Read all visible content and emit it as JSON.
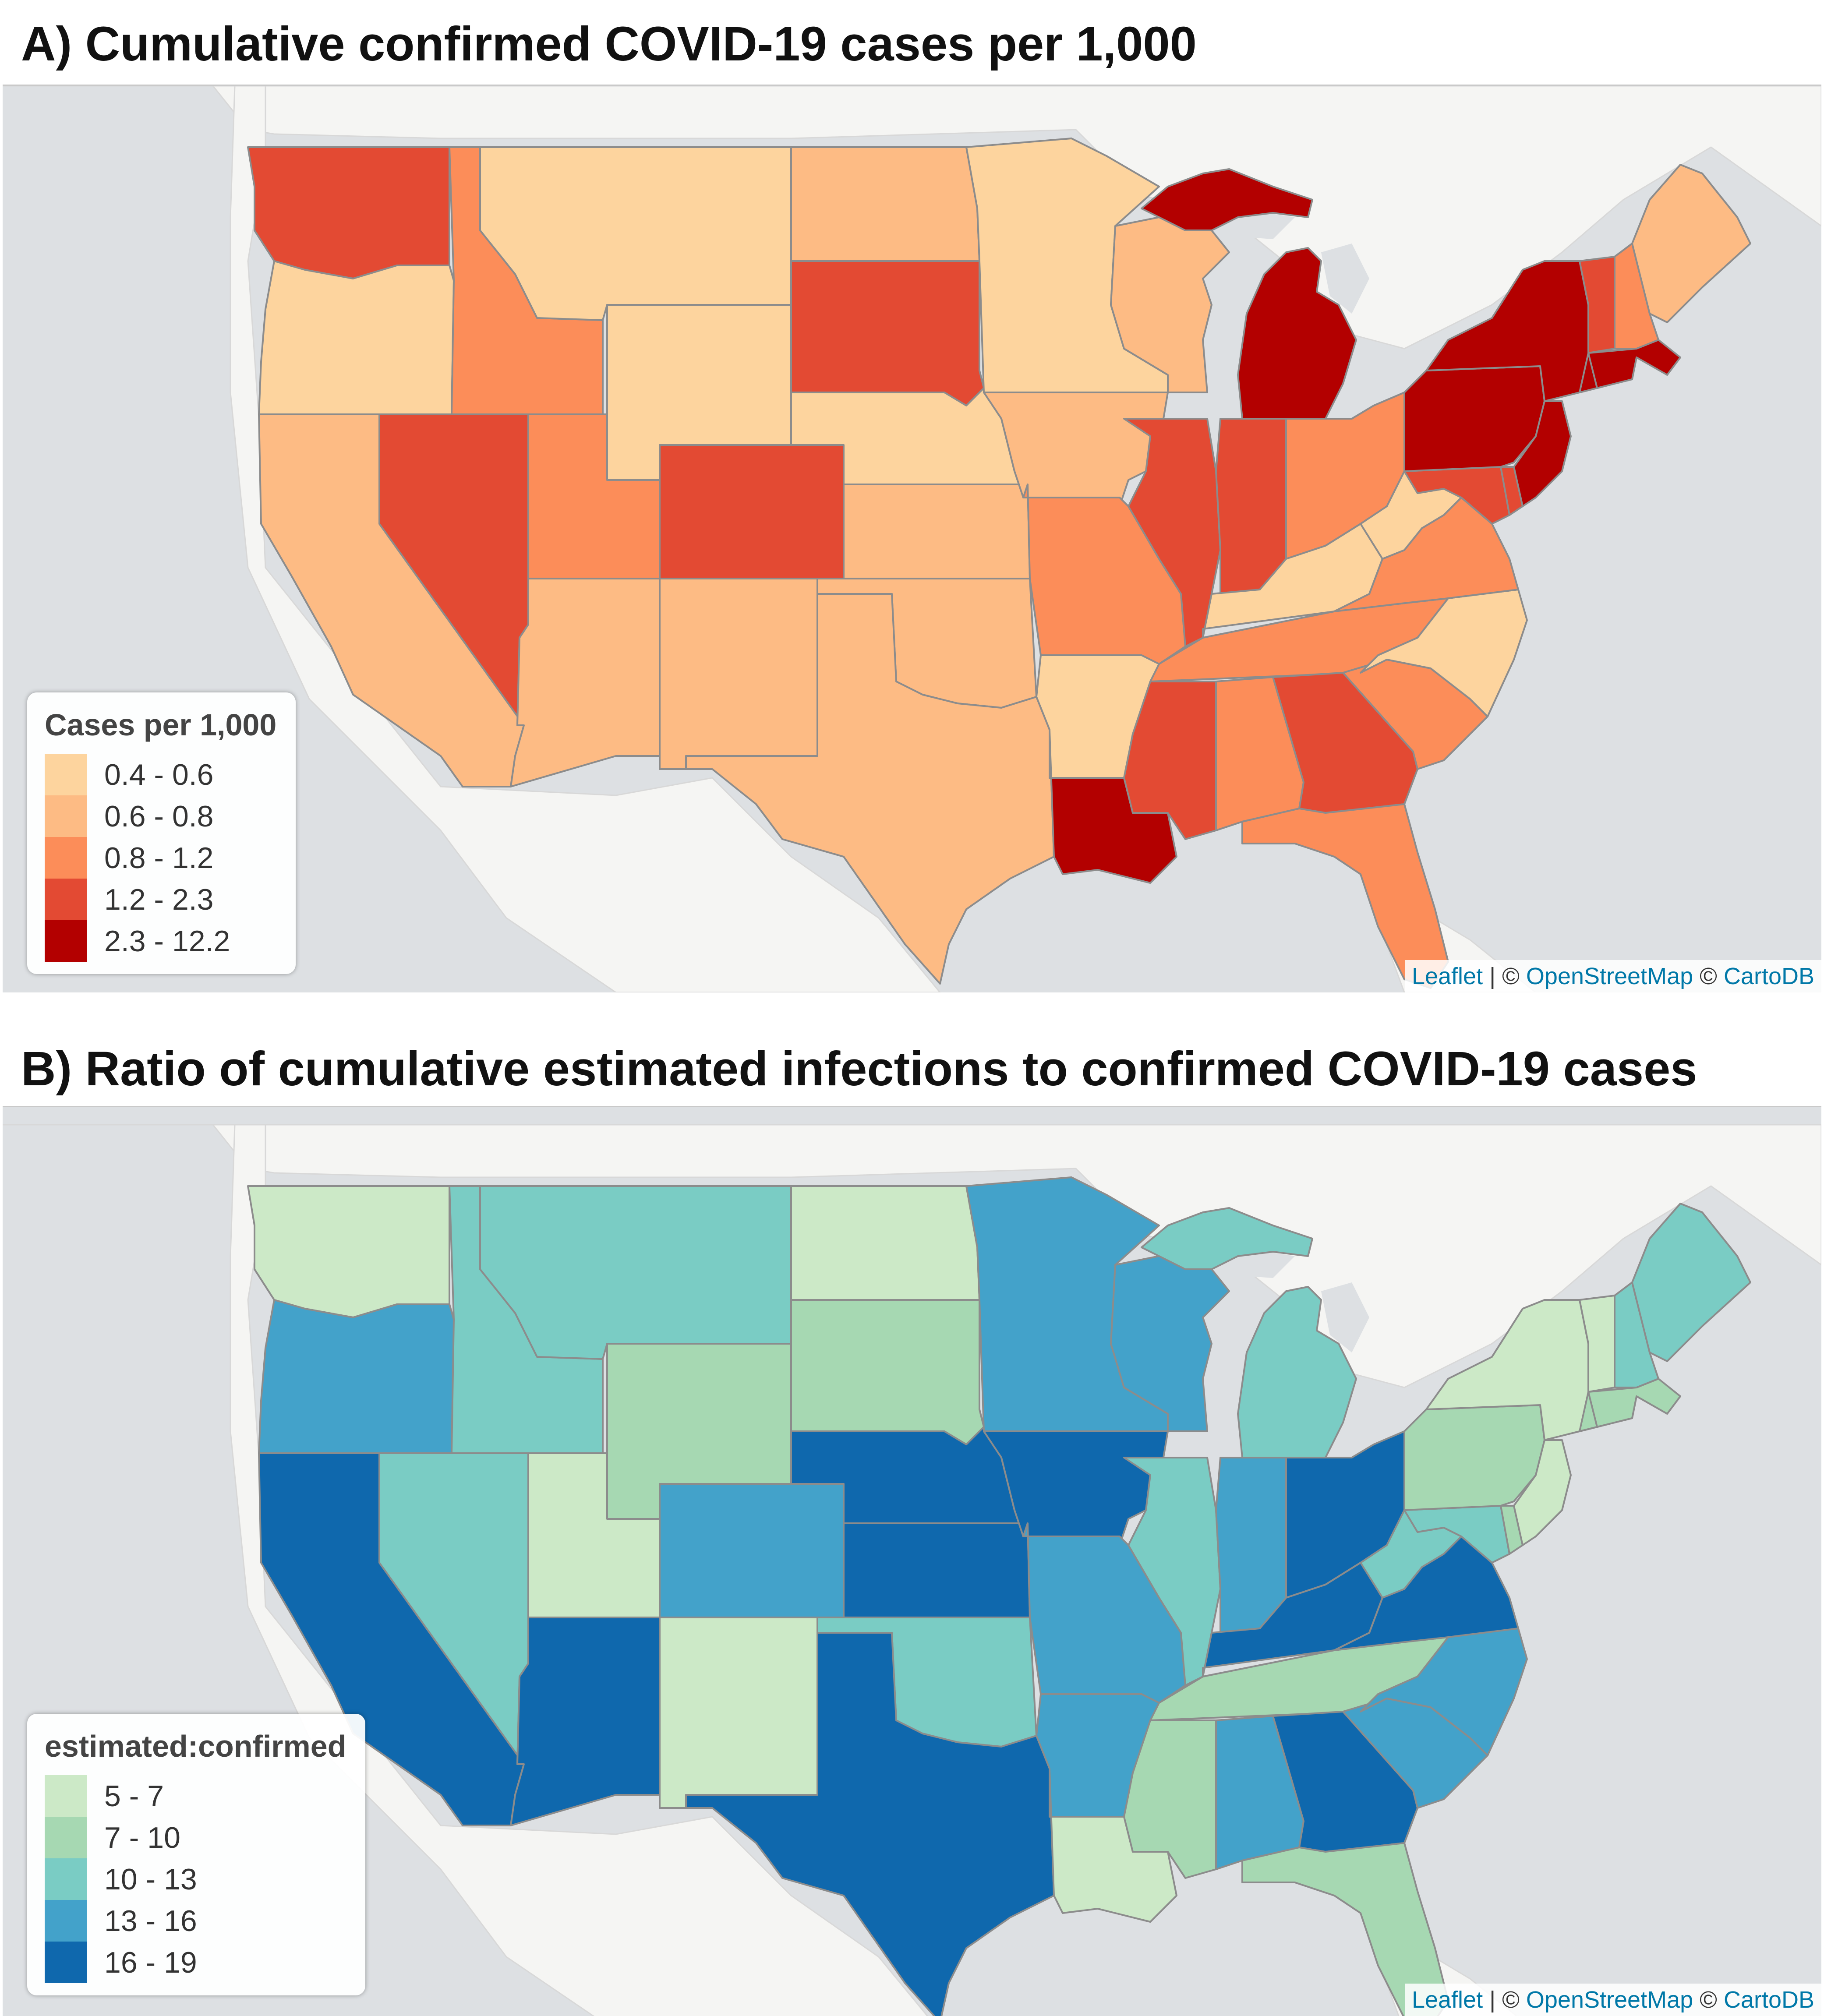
{
  "panel_a": {
    "title": "A) Cumulative confirmed COVID-19 cases per 1,000",
    "legend": {
      "title": "Cases per 1,000",
      "items": [
        {
          "label": "0.4 - 0.6",
          "color": "#fdd49e"
        },
        {
          "label": "0.6 - 0.8",
          "color": "#fdbb84"
        },
        {
          "label": "0.8 - 1.2",
          "color": "#fc8d59"
        },
        {
          "label": "1.2 - 2.3",
          "color": "#e34a33"
        },
        {
          "label": "2.3 - 12.2",
          "color": "#b30000"
        }
      ]
    },
    "attribution": {
      "leaflet": "Leaflet",
      "sep": " | © ",
      "osm": "OpenStreetMap",
      "carto_prefix": " © ",
      "carto": "CartoDB"
    }
  },
  "panel_b": {
    "title": "B) Ratio of cumulative estimated infections to confirmed COVID-19 cases",
    "legend": {
      "title": "estimated:confirmed",
      "items": [
        {
          "label": "5 - 7",
          "color": "#cce9c7"
        },
        {
          "label": "7 - 10",
          "color": "#a6d8b2"
        },
        {
          "label": "10 - 13",
          "color": "#7accc4"
        },
        {
          "label": "13 - 16",
          "color": "#43a2ca"
        },
        {
          "label": "16 - 19",
          "color": "#0f68ad"
        }
      ]
    },
    "attribution": {
      "leaflet": "Leaflet",
      "sep": " | © ",
      "osm": "OpenStreetMap",
      "carto_prefix": " © ",
      "carto": "CartoDB"
    }
  },
  "map_colors": {
    "water": "#dde0e3",
    "land": "#f5f5f3",
    "state_border": "#8c8c8c"
  },
  "states": {
    "WA": {
      "a": 4,
      "b": 1
    },
    "OR": {
      "a": 1,
      "b": 4
    },
    "CA": {
      "a": 2,
      "b": 5
    },
    "ID": {
      "a": 3,
      "b": 3
    },
    "NV": {
      "a": 4,
      "b": 3
    },
    "MT": {
      "a": 1,
      "b": 3
    },
    "WY": {
      "a": 1,
      "b": 2
    },
    "UT": {
      "a": 3,
      "b": 1
    },
    "AZ": {
      "a": 2,
      "b": 5
    },
    "CO": {
      "a": 4,
      "b": 4
    },
    "NM": {
      "a": 2,
      "b": 1
    },
    "ND": {
      "a": 2,
      "b": 1
    },
    "SD": {
      "a": 4,
      "b": 2
    },
    "NE": {
      "a": 1,
      "b": 5
    },
    "KS": {
      "a": 2,
      "b": 5
    },
    "OK": {
      "a": 2,
      "b": 3
    },
    "TX": {
      "a": 2,
      "b": 5
    },
    "MN": {
      "a": 1,
      "b": 4
    },
    "IA": {
      "a": 2,
      "b": 5
    },
    "MO": {
      "a": 3,
      "b": 4
    },
    "AR": {
      "a": 1,
      "b": 4
    },
    "LA": {
      "a": 5,
      "b": 1
    },
    "WI": {
      "a": 2,
      "b": 4
    },
    "IL": {
      "a": 4,
      "b": 3
    },
    "MI": {
      "a": 5,
      "b": 3
    },
    "MIUP": {
      "a": 5,
      "b": 3
    },
    "IN": {
      "a": 4,
      "b": 4
    },
    "OH": {
      "a": 3,
      "b": 5
    },
    "KY": {
      "a": 1,
      "b": 5
    },
    "TN": {
      "a": 3,
      "b": 2
    },
    "MS": {
      "a": 4,
      "b": 2
    },
    "AL": {
      "a": 3,
      "b": 4
    },
    "GA": {
      "a": 4,
      "b": 5
    },
    "FL": {
      "a": 3,
      "b": 2
    },
    "SC": {
      "a": 3,
      "b": 4
    },
    "NC": {
      "a": 1,
      "b": 4
    },
    "VA": {
      "a": 3,
      "b": 5
    },
    "WV": {
      "a": 1,
      "b": 3
    },
    "MD": {
      "a": 4,
      "b": 3
    },
    "DE": {
      "a": 4,
      "b": 2
    },
    "PA": {
      "a": 5,
      "b": 2
    },
    "NY": {
      "a": 5,
      "b": 1
    },
    "NJ": {
      "a": 5,
      "b": 1
    },
    "CT": {
      "a": 5,
      "b": 2
    },
    "MA": {
      "a": 5,
      "b": 2
    },
    "VT": {
      "a": 4,
      "b": 1
    },
    "NH": {
      "a": 3,
      "b": 3
    },
    "ME": {
      "a": 2,
      "b": 3
    }
  }
}
